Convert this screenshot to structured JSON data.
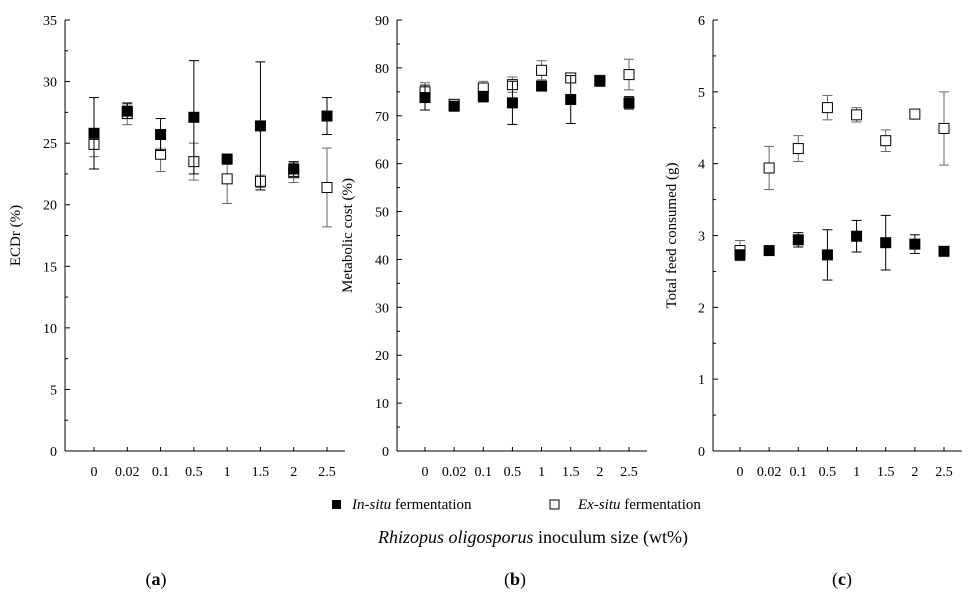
{
  "chart_data": [
    {
      "id": "a",
      "type": "scatter",
      "panel_label": "(a)",
      "ylabel": "ECDr (%)",
      "ylim": [
        0,
        35
      ],
      "yticks": [
        0,
        5,
        10,
        15,
        20,
        25,
        30,
        35
      ],
      "categories": [
        "0",
        "0.02",
        "0.1",
        "0.5",
        "1",
        "1.5",
        "2",
        "2.5"
      ],
      "series": [
        {
          "name": "In-situ fermentation",
          "marker": "filled-square",
          "values": [
            25.8,
            27.6,
            25.7,
            27.1,
            23.7,
            26.4,
            22.9,
            27.2
          ],
          "err": [
            2.9,
            0.6,
            1.3,
            4.6,
            0.4,
            5.2,
            0.6,
            1.5
          ]
        },
        {
          "name": "Ex-situ fermentation",
          "marker": "open-square",
          "values": [
            24.9,
            27.4,
            24.1,
            23.5,
            22.1,
            21.9,
            22.6,
            21.4
          ],
          "err": [
            1.0,
            0.9,
            1.4,
            1.5,
            2.0,
            0.5,
            0.8,
            3.2
          ]
        }
      ]
    },
    {
      "id": "b",
      "type": "scatter",
      "panel_label": "(b)",
      "ylabel": "Metabolic cost (%)",
      "ylim": [
        0,
        90
      ],
      "yticks": [
        0,
        10,
        20,
        30,
        40,
        50,
        60,
        70,
        80,
        90
      ],
      "categories": [
        "0",
        "0.02",
        "0.1",
        "0.5",
        "1",
        "1.5",
        "2",
        "2.5"
      ],
      "series": [
        {
          "name": "In-situ fermentation",
          "marker": "filled-square",
          "values": [
            73.8,
            72.0,
            74.0,
            72.7,
            76.2,
            73.4,
            77.2,
            72.7
          ],
          "err": [
            2.6,
            0.4,
            1.1,
            4.5,
            0.5,
            5.0,
            0.6,
            1.3
          ]
        },
        {
          "name": "Ex-situ fermentation",
          "marker": "open-square",
          "values": [
            75.0,
            72.4,
            75.8,
            76.5,
            79.5,
            77.9,
            77.4,
            78.6
          ],
          "err": [
            1.9,
            0.7,
            1.4,
            1.6,
            2.0,
            0.5,
            0.8,
            3.2
          ]
        }
      ]
    },
    {
      "id": "c",
      "type": "scatter",
      "panel_label": "(c)",
      "ylabel": "Total feed consumed (g)",
      "ylim": [
        0,
        6
      ],
      "yticks": [
        0,
        1,
        2,
        3,
        4,
        5,
        6
      ],
      "categories": [
        "0",
        "0.02",
        "0.1",
        "0.5",
        "1",
        "1.5",
        "2",
        "2.5"
      ],
      "series": [
        {
          "name": "In-situ fermentation",
          "marker": "filled-square",
          "values": [
            2.73,
            2.79,
            2.94,
            2.73,
            2.99,
            2.9,
            2.88,
            2.78
          ],
          "err": [
            0.07,
            0.03,
            0.1,
            0.35,
            0.22,
            0.38,
            0.13,
            0.05
          ]
        },
        {
          "name": "Ex-situ fermentation",
          "marker": "open-square",
          "values": [
            2.79,
            3.94,
            4.21,
            4.78,
            4.68,
            4.32,
            4.69,
            4.49
          ],
          "err": [
            0.14,
            0.3,
            0.18,
            0.17,
            0.1,
            0.15,
            0.06,
            0.51
          ]
        }
      ]
    }
  ],
  "legend": {
    "in_situ": {
      "italic": "In-situ",
      "rest": " fermentation"
    },
    "ex_situ": {
      "italic": "Ex-situ",
      "rest": " fermentation"
    }
  },
  "xlabel": {
    "italic": "Rhizopus oligosporus",
    "rest": " inoculum size   (wt%)"
  },
  "labels": {
    "a": "a",
    "b": "b",
    "c": "c"
  }
}
